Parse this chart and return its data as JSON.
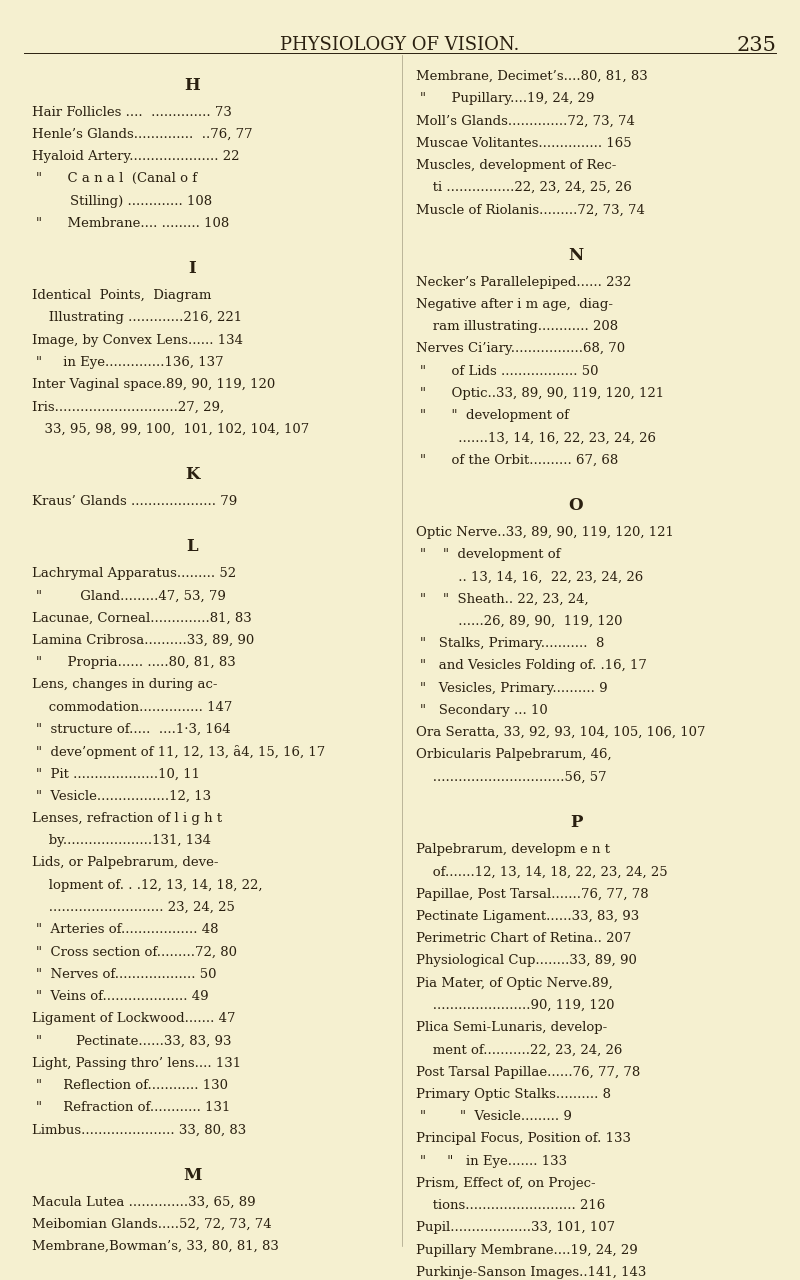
{
  "bg_color": "#f5f0d0",
  "text_color": "#2a2010",
  "title": "PHYSIOLOGY OF VISION.",
  "page_num": "235",
  "title_fontsize": 13,
  "body_fontsize": 9.5,
  "section_fontsize": 12,
  "left_col": [
    {
      "type": "section",
      "text": "H"
    },
    {
      "type": "entry",
      "text": "Hair Follicles ....  .............. 73"
    },
    {
      "type": "entry",
      "text": "Henle’s Glands..............  ..76, 77"
    },
    {
      "type": "entry",
      "text": "Hyaloid Artery..................... 22"
    },
    {
      "type": "entry2",
      "text": "\"      C a n a l  (Canal o f"
    },
    {
      "type": "entry2b",
      "text": "        Stilling) ............. 108"
    },
    {
      "type": "entry2",
      "text": "\"      Membrane.... ......... 108"
    },
    {
      "type": "blank"
    },
    {
      "type": "section",
      "text": "I"
    },
    {
      "type": "entry",
      "text": "Identical  Points,  Diagram"
    },
    {
      "type": "entry2",
      "text": "   Illustrating .............216, 221"
    },
    {
      "type": "entry",
      "text": "Image, by Convex Lens...... 134"
    },
    {
      "type": "entry2",
      "text": "\"     in Eye..............136, 137"
    },
    {
      "type": "entry",
      "text": "Inter Vaginal space.89, 90, 119, 120"
    },
    {
      "type": "entry",
      "text": "Iris.............................27, 29,"
    },
    {
      "type": "entry2",
      "text": "  33, 95, 98, 99, 100,  101, 102, 104, 107"
    },
    {
      "type": "blank"
    },
    {
      "type": "section",
      "text": "K"
    },
    {
      "type": "entry",
      "text": "Kraus’ Glands .................... 79"
    },
    {
      "type": "blank"
    },
    {
      "type": "section",
      "text": "L"
    },
    {
      "type": "entry",
      "text": "Lachrymal Apparatus......... 52"
    },
    {
      "type": "entry2",
      "text": "\"         Gland.........47, 53, 79"
    },
    {
      "type": "entry",
      "text": "Lacunae, Corneal..............81, 83"
    },
    {
      "type": "entry",
      "text": "Lamina Cribrosa..........33, 89, 90"
    },
    {
      "type": "entry2",
      "text": "\"      Propria...... .....80, 81, 83"
    },
    {
      "type": "entry",
      "text": "Lens, changes in during ac-"
    },
    {
      "type": "entry2",
      "text": "   commodation............... 147"
    },
    {
      "type": "entry2",
      "text": "\"  structure of.....  ....1·3, 164"
    },
    {
      "type": "entry2",
      "text": "\"  deve’opment of 11, 12, 13, ȃ4, 15, 16, 17"
    },
    {
      "type": "entry2",
      "text": "\"  Pit ....................10, 11"
    },
    {
      "type": "entry2",
      "text": "\"  Vesicle.................12, 13"
    },
    {
      "type": "entry",
      "text": "Lenses, refraction of l i g h t"
    },
    {
      "type": "entry2",
      "text": "   by.....................131, 134"
    },
    {
      "type": "entry",
      "text": "Lids, or Palpebrarum, deve-"
    },
    {
      "type": "entry2",
      "text": "   lopment of. . .12, 13, 14, 18, 22,"
    },
    {
      "type": "entry2",
      "text": "   ........................... 23, 24, 25"
    },
    {
      "type": "entry2",
      "text": "\"  Arteries of.................. 48"
    },
    {
      "type": "entry2",
      "text": "\"  Cross section of.........72, 80"
    },
    {
      "type": "entry2",
      "text": "\"  Nerves of................... 50"
    },
    {
      "type": "entry2",
      "text": "\"  Veins of.................... 49"
    },
    {
      "type": "entry",
      "text": "Ligament of Lockwood....... 47"
    },
    {
      "type": "entry2",
      "text": "\"        Pectinate......33, 83, 93"
    },
    {
      "type": "entry",
      "text": "Light, Passing thro’ lens.... 131"
    },
    {
      "type": "entry2",
      "text": "\"     Reflection of............ 130"
    },
    {
      "type": "entry2",
      "text": "\"     Refraction of............ 131"
    },
    {
      "type": "entry",
      "text": "Limbus...................... 33, 80, 83"
    },
    {
      "type": "blank"
    },
    {
      "type": "section",
      "text": "M"
    },
    {
      "type": "entry",
      "text": "Macula Lutea ..............33, 65, 89"
    },
    {
      "type": "entry",
      "text": "Meibomian Glands.....52, 72, 73, 74"
    },
    {
      "type": "entry",
      "text": "Membrane,Bowman’s, 33, 80, 81, 83"
    }
  ],
  "right_col": [
    {
      "type": "entry",
      "text": "Membrane, Decimet’s....80, 81, 83"
    },
    {
      "type": "entry2",
      "text": "\"      Pupillary....19, 24, 29"
    },
    {
      "type": "entry",
      "text": "Moll’s Glands..............72, 73, 74"
    },
    {
      "type": "entry",
      "text": "Muscae Volitantes............... 165"
    },
    {
      "type": "entry",
      "text": "Muscles, development of Rec-"
    },
    {
      "type": "entry2",
      "text": "   ti ................22, 23, 24, 25, 26"
    },
    {
      "type": "entry",
      "text": "Muscle of Riolanis.........72, 73, 74"
    },
    {
      "type": "blank"
    },
    {
      "type": "section",
      "text": "N"
    },
    {
      "type": "entry",
      "text": "Necker’s Parallelepiped...... 232"
    },
    {
      "type": "entry",
      "text": "Negative after i m age,  diag-"
    },
    {
      "type": "entry2",
      "text": "   ram illustrating............ 208"
    },
    {
      "type": "entry",
      "text": "Nerves Ci’iary.................68, 70"
    },
    {
      "type": "entry2",
      "text": "\"      of Lids .................. 50"
    },
    {
      "type": "entry2",
      "text": "\"      Optic..33, 89, 90, 119, 120, 121"
    },
    {
      "type": "entry2",
      "text": "\"      \"  development of"
    },
    {
      "type": "entry2b",
      "text": "         .......13, 14, 16, 22, 23, 24, 26"
    },
    {
      "type": "entry2",
      "text": "\"      of the Orbit.......... 67, 68"
    },
    {
      "type": "blank"
    },
    {
      "type": "section",
      "text": "O"
    },
    {
      "type": "entry",
      "text": "Optic Nerve..33, 89, 90, 119, 120, 121"
    },
    {
      "type": "entry2",
      "text": "\"    \"  development of"
    },
    {
      "type": "entry2b",
      "text": "         .. 13, 14, 16,  22, 23, 24, 26"
    },
    {
      "type": "entry2",
      "text": "\"    \"  Sheath.. 22, 23, 24,"
    },
    {
      "type": "entry2b",
      "text": "         ......26, 89, 90,  119, 120"
    },
    {
      "type": "entry2",
      "text": "\"   Stalks, Primary...........  8"
    },
    {
      "type": "entry2",
      "text": "\"   and Vesicles Folding of. .16, 17"
    },
    {
      "type": "entry2",
      "text": "\"   Vesicles, Primary.......... 9"
    },
    {
      "type": "entry2",
      "text": "\"   Secondary ... 10"
    },
    {
      "type": "entry",
      "text": "Ora Seratta, 33, 92, 93, 104, 105, 106, 107"
    },
    {
      "type": "entry",
      "text": "Orbicularis Palpebrarum, 46,"
    },
    {
      "type": "entry2",
      "text": "   ...............................56, 57"
    },
    {
      "type": "blank"
    },
    {
      "type": "section",
      "text": "P"
    },
    {
      "type": "entry",
      "text": "Palpebrarum, developm e n t"
    },
    {
      "type": "entry2",
      "text": "   of.......12, 13, 14, 18, 22, 23, 24, 25"
    },
    {
      "type": "entry",
      "text": "Papillae, Post Tarsal.......76, 77, 78"
    },
    {
      "type": "entry",
      "text": "Pectinate Ligament......33, 83, 93"
    },
    {
      "type": "entry",
      "text": "Perimetric Chart of Retina.. 207"
    },
    {
      "type": "entry",
      "text": "Physiological Cup........33, 89, 90"
    },
    {
      "type": "entry",
      "text": "Pia Mater, of Optic Nerve.89,"
    },
    {
      "type": "entry2",
      "text": "   .......................90, 119, 120"
    },
    {
      "type": "entry",
      "text": "Plica Semi-Lunaris, develop-"
    },
    {
      "type": "entry2",
      "text": "   ment of...........22, 23, 24, 26"
    },
    {
      "type": "entry",
      "text": "Post Tarsal Papillae......76, 77, 78"
    },
    {
      "type": "entry",
      "text": "Primary Optic Stalks.......... 8"
    },
    {
      "type": "entry2",
      "text": "\"        \"  Vesicle......... 9"
    },
    {
      "type": "entry",
      "text": "Principal Focus, Position of. 133"
    },
    {
      "type": "entry2",
      "text": "\"     \"   in Eye....... 133"
    },
    {
      "type": "entry",
      "text": "Prism, Effect of, on Projec-"
    },
    {
      "type": "entry2",
      "text": "   tions.......................... 216"
    },
    {
      "type": "entry",
      "text": "Pupil...................33, 101, 107"
    },
    {
      "type": "entry",
      "text": "Pupillary Membrane....19, 24, 29"
    },
    {
      "type": "entry",
      "text": "Purkinje-Sanson Images..141, 143"
    }
  ]
}
